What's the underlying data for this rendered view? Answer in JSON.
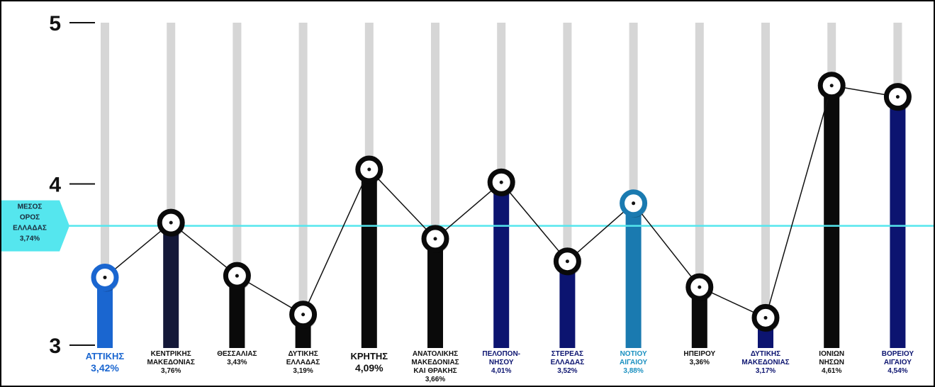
{
  "chart_data": {
    "type": "bar",
    "ylim": [
      3,
      5
    ],
    "yticks": [
      "3",
      "4",
      "5"
    ],
    "grid": false,
    "average": {
      "value": 3.74,
      "label_lines": [
        "ΜΕΣΟΣ",
        "ΟΡΟΣ",
        "ΕΛΛΑΔΑΣ",
        "3,74%"
      ],
      "color": "#55e6ee"
    },
    "categories": [
      {
        "name_lines": [
          "ΑΤΤΙΚΗΣ"
        ],
        "value": 3.42,
        "value_label": "3,42%",
        "color": "#1a66d0",
        "label_color": "#1a66d0",
        "big": true
      },
      {
        "name_lines": [
          "ΚΕΝΤΡΙΚΗΣ",
          "ΜΑΚΕΔΟΝΙΑΣ"
        ],
        "value": 3.76,
        "value_label": "3,76%",
        "color": "#141838",
        "label_color": "#111111",
        "big": false
      },
      {
        "name_lines": [
          "ΘΕΣΣΑΛΙΑΣ"
        ],
        "value": 3.43,
        "value_label": "3,43%",
        "color": "#0a0a0a",
        "label_color": "#111111",
        "big": false
      },
      {
        "name_lines": [
          "ΔΥΤΙΚΗΣ",
          "ΕΛΛΑΔΑΣ"
        ],
        "value": 3.19,
        "value_label": "3,19%",
        "color": "#0a0a0a",
        "label_color": "#111111",
        "big": false
      },
      {
        "name_lines": [
          "ΚΡΗΤΗΣ"
        ],
        "value": 4.09,
        "value_label": "4,09%",
        "color": "#0a0a0a",
        "label_color": "#111111",
        "big": true
      },
      {
        "name_lines": [
          "ΑΝΑΤΟΛΙΚΗΣ",
          "ΜΑΚΕΔΟΝΙΑΣ",
          "ΚΑΙ ΘΡΑΚΗΣ"
        ],
        "value": 3.66,
        "value_label": "3,66%",
        "color": "#0a0a0a",
        "label_color": "#111111",
        "big": false
      },
      {
        "name_lines": [
          "ΠΕΛΟΠΟΝ-",
          "ΝΗΣΟΥ"
        ],
        "value": 4.01,
        "value_label": "4,01%",
        "color": "#0c1470",
        "label_color": "#0c1470",
        "big": false
      },
      {
        "name_lines": [
          "ΣΤΕΡΕΑΣ",
          "ΕΛΛΑΔΑΣ"
        ],
        "value": 3.52,
        "value_label": "3,52%",
        "color": "#0c1470",
        "label_color": "#0c1470",
        "big": false
      },
      {
        "name_lines": [
          "ΝΟΤΙΟΥ",
          "ΑΙΓΑΙΟΥ"
        ],
        "value": 3.88,
        "value_label": "3,88%",
        "color": "#1a7ab0",
        "label_color": "#1a90c0",
        "big": false
      },
      {
        "name_lines": [
          "ΗΠΕΙΡΟΥ"
        ],
        "value": 3.36,
        "value_label": "3,36%",
        "color": "#0a0a0a",
        "label_color": "#111111",
        "big": false
      },
      {
        "name_lines": [
          "ΔΥΤΙΚΗΣ",
          "ΜΑΚΕΔΟΝΙΑΣ"
        ],
        "value": 3.17,
        "value_label": "3,17%",
        "color": "#0c1470",
        "label_color": "#0c1470",
        "big": false
      },
      {
        "name_lines": [
          "ΙΟΝΙΩΝ",
          "ΝΗΣΩΝ"
        ],
        "value": 4.61,
        "value_label": "4,61%",
        "color": "#0a0a0a",
        "label_color": "#111111",
        "big": false
      },
      {
        "name_lines": [
          "ΒΟΡΕΙΟΥ",
          "ΑΙΓΑΙΟΥ"
        ],
        "value": 4.54,
        "value_label": "4,54%",
        "color": "#0c1470",
        "label_color": "#0c1470",
        "big": false
      }
    ],
    "colors": {
      "track": "#d6d6d6",
      "line": "#111111",
      "axis": "#111111",
      "marker_ring": "#0a0a0a",
      "marker_fill": "#ffffff"
    }
  }
}
